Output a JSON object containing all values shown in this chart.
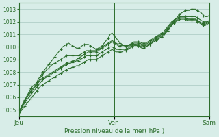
{
  "title": "Pression niveau de la mer( hPa )",
  "bg_color": "#d8ede8",
  "grid_color": "#a8c8c0",
  "line_color": "#2d6e2d",
  "marker_color": "#2d6e2d",
  "ylim": [
    1004.5,
    1013.5
  ],
  "yticks": [
    1005,
    1006,
    1007,
    1008,
    1009,
    1010,
    1011,
    1012,
    1013
  ],
  "xtick_labels": [
    "Jeu",
    "Ven",
    "Sam"
  ],
  "xtick_positions": [
    0,
    48,
    96
  ],
  "xlabel": "Pression niveau de la mer( hPa )",
  "num_points": 97,
  "lines": [
    [
      1004.8,
      1005.1,
      1005.4,
      1005.7,
      1006.1,
      1006.4,
      1006.7,
      1006.9,
      1007.0,
      1007.2,
      1007.5,
      1007.7,
      1008.0,
      1008.2,
      1008.4,
      1008.6,
      1008.8,
      1009.0,
      1009.2,
      1009.4,
      1009.6,
      1009.8,
      1010.0,
      1010.1,
      1010.2,
      1010.3,
      1010.2,
      1010.1,
      1010.0,
      1009.9,
      1009.9,
      1010.0,
      1010.1,
      1010.2,
      1010.2,
      1010.2,
      1010.1,
      1010.0,
      1009.9,
      1009.8,
      1009.9,
      1010.0,
      1010.1,
      1010.3,
      1010.5,
      1010.7,
      1011.0,
      1011.1,
      1010.9,
      1010.7,
      1010.5,
      1010.3,
      1010.2,
      1010.1,
      1010.0,
      1010.0,
      1010.1,
      1010.2,
      1010.2,
      1010.2,
      1010.1,
      1010.0,
      1009.9,
      1009.9,
      1010.0,
      1010.1,
      1010.2,
      1010.3,
      1010.4,
      1010.5,
      1010.6,
      1010.7,
      1010.8,
      1010.9,
      1011.1,
      1011.3,
      1011.5,
      1011.7,
      1012.0,
      1012.2,
      1012.4,
      1012.6,
      1012.7,
      1012.8,
      1012.9,
      1012.9,
      1012.9,
      1013.0,
      1013.0,
      1013.0,
      1012.9,
      1012.8,
      1012.7,
      1012.5,
      1012.4,
      1012.4,
      1012.5
    ],
    [
      1004.8,
      1005.2,
      1005.5,
      1005.8,
      1006.1,
      1006.3,
      1006.5,
      1006.7,
      1006.9,
      1007.1,
      1007.3,
      1007.6,
      1007.8,
      1008.0,
      1008.2,
      1008.3,
      1008.5,
      1008.6,
      1008.7,
      1008.8,
      1008.9,
      1009.0,
      1009.1,
      1009.2,
      1009.3,
      1009.3,
      1009.3,
      1009.3,
      1009.3,
      1009.3,
      1009.3,
      1009.4,
      1009.5,
      1009.6,
      1009.7,
      1009.7,
      1009.7,
      1009.7,
      1009.7,
      1009.7,
      1009.8,
      1009.9,
      1010.0,
      1010.1,
      1010.2,
      1010.3,
      1010.4,
      1010.5,
      1010.4,
      1010.3,
      1010.2,
      1010.1,
      1010.1,
      1010.1,
      1010.1,
      1010.1,
      1010.2,
      1010.2,
      1010.3,
      1010.3,
      1010.3,
      1010.3,
      1010.2,
      1010.2,
      1010.2,
      1010.3,
      1010.4,
      1010.5,
      1010.6,
      1010.7,
      1010.8,
      1010.9,
      1011.0,
      1011.1,
      1011.3,
      1011.5,
      1011.7,
      1011.9,
      1012.1,
      1012.2,
      1012.3,
      1012.4,
      1012.4,
      1012.4,
      1012.4,
      1012.4,
      1012.4,
      1012.4,
      1012.4,
      1012.4,
      1012.3,
      1012.2,
      1012.1,
      1012.0,
      1012.0,
      1012.0,
      1012.1
    ],
    [
      1004.8,
      1005.0,
      1005.3,
      1005.6,
      1005.8,
      1006.0,
      1006.2,
      1006.4,
      1006.6,
      1006.8,
      1007.0,
      1007.2,
      1007.4,
      1007.5,
      1007.6,
      1007.7,
      1007.8,
      1007.9,
      1008.0,
      1008.1,
      1008.2,
      1008.3,
      1008.4,
      1008.5,
      1008.6,
      1008.7,
      1008.7,
      1008.8,
      1008.8,
      1008.9,
      1008.9,
      1009.0,
      1009.1,
      1009.2,
      1009.3,
      1009.3,
      1009.3,
      1009.3,
      1009.3,
      1009.3,
      1009.4,
      1009.5,
      1009.6,
      1009.7,
      1009.8,
      1009.9,
      1010.0,
      1010.0,
      1009.9,
      1009.8,
      1009.8,
      1009.8,
      1009.8,
      1009.8,
      1009.8,
      1009.9,
      1010.0,
      1010.1,
      1010.2,
      1010.2,
      1010.2,
      1010.2,
      1010.1,
      1010.1,
      1010.1,
      1010.2,
      1010.3,
      1010.4,
      1010.5,
      1010.6,
      1010.7,
      1010.8,
      1010.9,
      1011.0,
      1011.2,
      1011.4,
      1011.6,
      1011.8,
      1012.0,
      1012.1,
      1012.2,
      1012.3,
      1012.3,
      1012.3,
      1012.3,
      1012.2,
      1012.2,
      1012.2,
      1012.2,
      1012.2,
      1012.1,
      1012.0,
      1011.9,
      1011.8,
      1011.8,
      1011.9,
      1012.0
    ],
    [
      1004.8,
      1004.9,
      1005.1,
      1005.3,
      1005.5,
      1005.7,
      1005.9,
      1006.1,
      1006.3,
      1006.5,
      1006.7,
      1006.9,
      1007.0,
      1007.1,
      1007.2,
      1007.3,
      1007.4,
      1007.5,
      1007.6,
      1007.7,
      1007.8,
      1007.9,
      1008.0,
      1008.1,
      1008.2,
      1008.3,
      1008.3,
      1008.4,
      1008.4,
      1008.5,
      1008.5,
      1008.6,
      1008.7,
      1008.8,
      1008.9,
      1009.0,
      1009.0,
      1009.0,
      1009.0,
      1009.0,
      1009.1,
      1009.2,
      1009.3,
      1009.4,
      1009.5,
      1009.6,
      1009.7,
      1009.8,
      1009.7,
      1009.6,
      1009.6,
      1009.6,
      1009.6,
      1009.7,
      1009.7,
      1009.8,
      1009.9,
      1010.0,
      1010.1,
      1010.1,
      1010.1,
      1010.1,
      1010.0,
      1010.0,
      1010.0,
      1010.1,
      1010.2,
      1010.3,
      1010.4,
      1010.5,
      1010.6,
      1010.7,
      1010.8,
      1010.9,
      1011.1,
      1011.3,
      1011.5,
      1011.7,
      1011.9,
      1012.0,
      1012.1,
      1012.2,
      1012.2,
      1012.2,
      1012.2,
      1012.1,
      1012.1,
      1012.1,
      1012.1,
      1012.1,
      1012.0,
      1011.9,
      1011.8,
      1011.7,
      1011.7,
      1011.8,
      1011.9
    ],
    [
      1004.8,
      1005.1,
      1005.4,
      1005.7,
      1006.0,
      1006.2,
      1006.4,
      1006.6,
      1006.8,
      1007.0,
      1007.2,
      1007.4,
      1007.5,
      1007.6,
      1007.7,
      1007.8,
      1007.9,
      1008.0,
      1008.1,
      1008.2,
      1008.3,
      1008.4,
      1008.5,
      1008.6,
      1008.7,
      1008.8,
      1008.8,
      1008.9,
      1008.9,
      1009.0,
      1009.1,
      1009.2,
      1009.3,
      1009.4,
      1009.5,
      1009.6,
      1009.6,
      1009.6,
      1009.6,
      1009.6,
      1009.7,
      1009.8,
      1009.9,
      1010.0,
      1010.1,
      1010.2,
      1010.3,
      1010.4,
      1010.3,
      1010.2,
      1010.1,
      1010.0,
      1010.0,
      1010.0,
      1010.0,
      1010.1,
      1010.2,
      1010.3,
      1010.4,
      1010.4,
      1010.4,
      1010.4,
      1010.3,
      1010.3,
      1010.3,
      1010.4,
      1010.5,
      1010.6,
      1010.7,
      1010.8,
      1010.9,
      1011.0,
      1011.1,
      1011.2,
      1011.4,
      1011.6,
      1011.8,
      1012.0,
      1012.1,
      1012.2,
      1012.3,
      1012.3,
      1012.3,
      1012.3,
      1012.3,
      1012.2,
      1012.2,
      1012.2,
      1012.2,
      1012.2,
      1012.1,
      1012.0,
      1011.9,
      1011.8,
      1011.9,
      1012.0,
      1012.1
    ]
  ]
}
